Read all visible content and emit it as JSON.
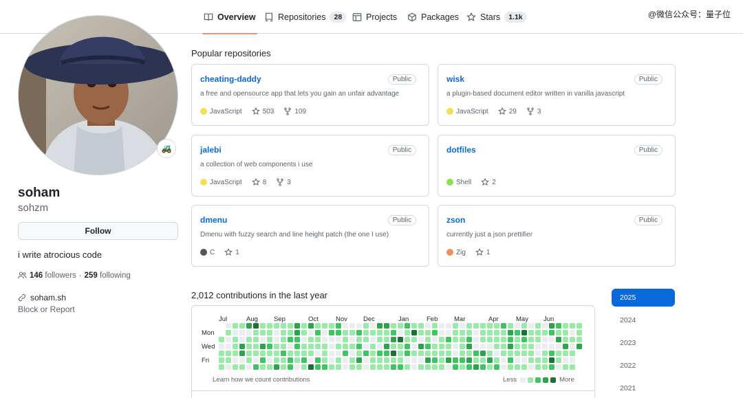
{
  "watermark": "@微信公众号：量子位",
  "tabs": [
    {
      "label": "Overview",
      "count": null
    },
    {
      "label": "Repositories",
      "count": "28"
    },
    {
      "label": "Projects",
      "count": null
    },
    {
      "label": "Packages",
      "count": null
    },
    {
      "label": "Stars",
      "count": "1.1k"
    }
  ],
  "profile": {
    "name": "soham",
    "login": "sohzm",
    "follow_label": "Follow",
    "bio": "i write atrocious code",
    "followers": "146",
    "followers_label": "followers",
    "separator": "·",
    "following": "259",
    "following_label": "following",
    "website": "soham.sh",
    "block_label": "Block or Report",
    "status_emoji": "🚜"
  },
  "popular": {
    "title": "Popular repositories",
    "repos": [
      {
        "name": "cheating-daddy",
        "visibility": "Public",
        "description": "a free and opensource app that lets you gain an unfair advantage",
        "language": "JavaScript",
        "lang_color": "#f1e05a",
        "stars": "503",
        "forks": "109"
      },
      {
        "name": "wisk",
        "visibility": "Public",
        "description": "a plugin-based document editor written in vanilla javascript",
        "language": "JavaScript",
        "lang_color": "#f1e05a",
        "stars": "29",
        "forks": "3"
      },
      {
        "name": "jalebi",
        "visibility": "Public",
        "description": "a collection of web components i use",
        "language": "JavaScript",
        "lang_color": "#f1e05a",
        "stars": "8",
        "forks": "3"
      },
      {
        "name": "dotfiles",
        "visibility": "Public",
        "description": "",
        "language": "Shell",
        "lang_color": "#89e051",
        "stars": "2",
        "forks": null
      },
      {
        "name": "dmenu",
        "visibility": "Public",
        "description": "Dmenu with fuzzy search and line height patch (the one I use)",
        "language": "C",
        "lang_color": "#555555",
        "stars": "1",
        "forks": null
      },
      {
        "name": "zson",
        "visibility": "Public",
        "description": "currently just a json prettifier",
        "language": "Zig",
        "lang_color": "#ec915c",
        "stars": "1",
        "forks": null
      }
    ]
  },
  "contributions": {
    "title": "2,012 contributions in the last year",
    "months": [
      "Jul",
      "Aug",
      "Sep",
      "Oct",
      "Nov",
      "Dec",
      "Jan",
      "Feb",
      "Mar",
      "Apr",
      "May",
      "Jun"
    ],
    "day_labels": [
      "Mon",
      "Wed",
      "Fri"
    ],
    "learn_label": "Learn how we count contributions",
    "legend_less": "Less",
    "legend_more": "More",
    "level_colors": [
      "#ebedf0",
      "#9be9a8",
      "#40c463",
      "#30a14e",
      "#216e39"
    ],
    "years": [
      "2025",
      "2024",
      "2023",
      "2022",
      "2021"
    ],
    "selected_year": "2025"
  },
  "colors": {
    "accent": "#0969da",
    "tab_underline": "#fd8c73"
  }
}
